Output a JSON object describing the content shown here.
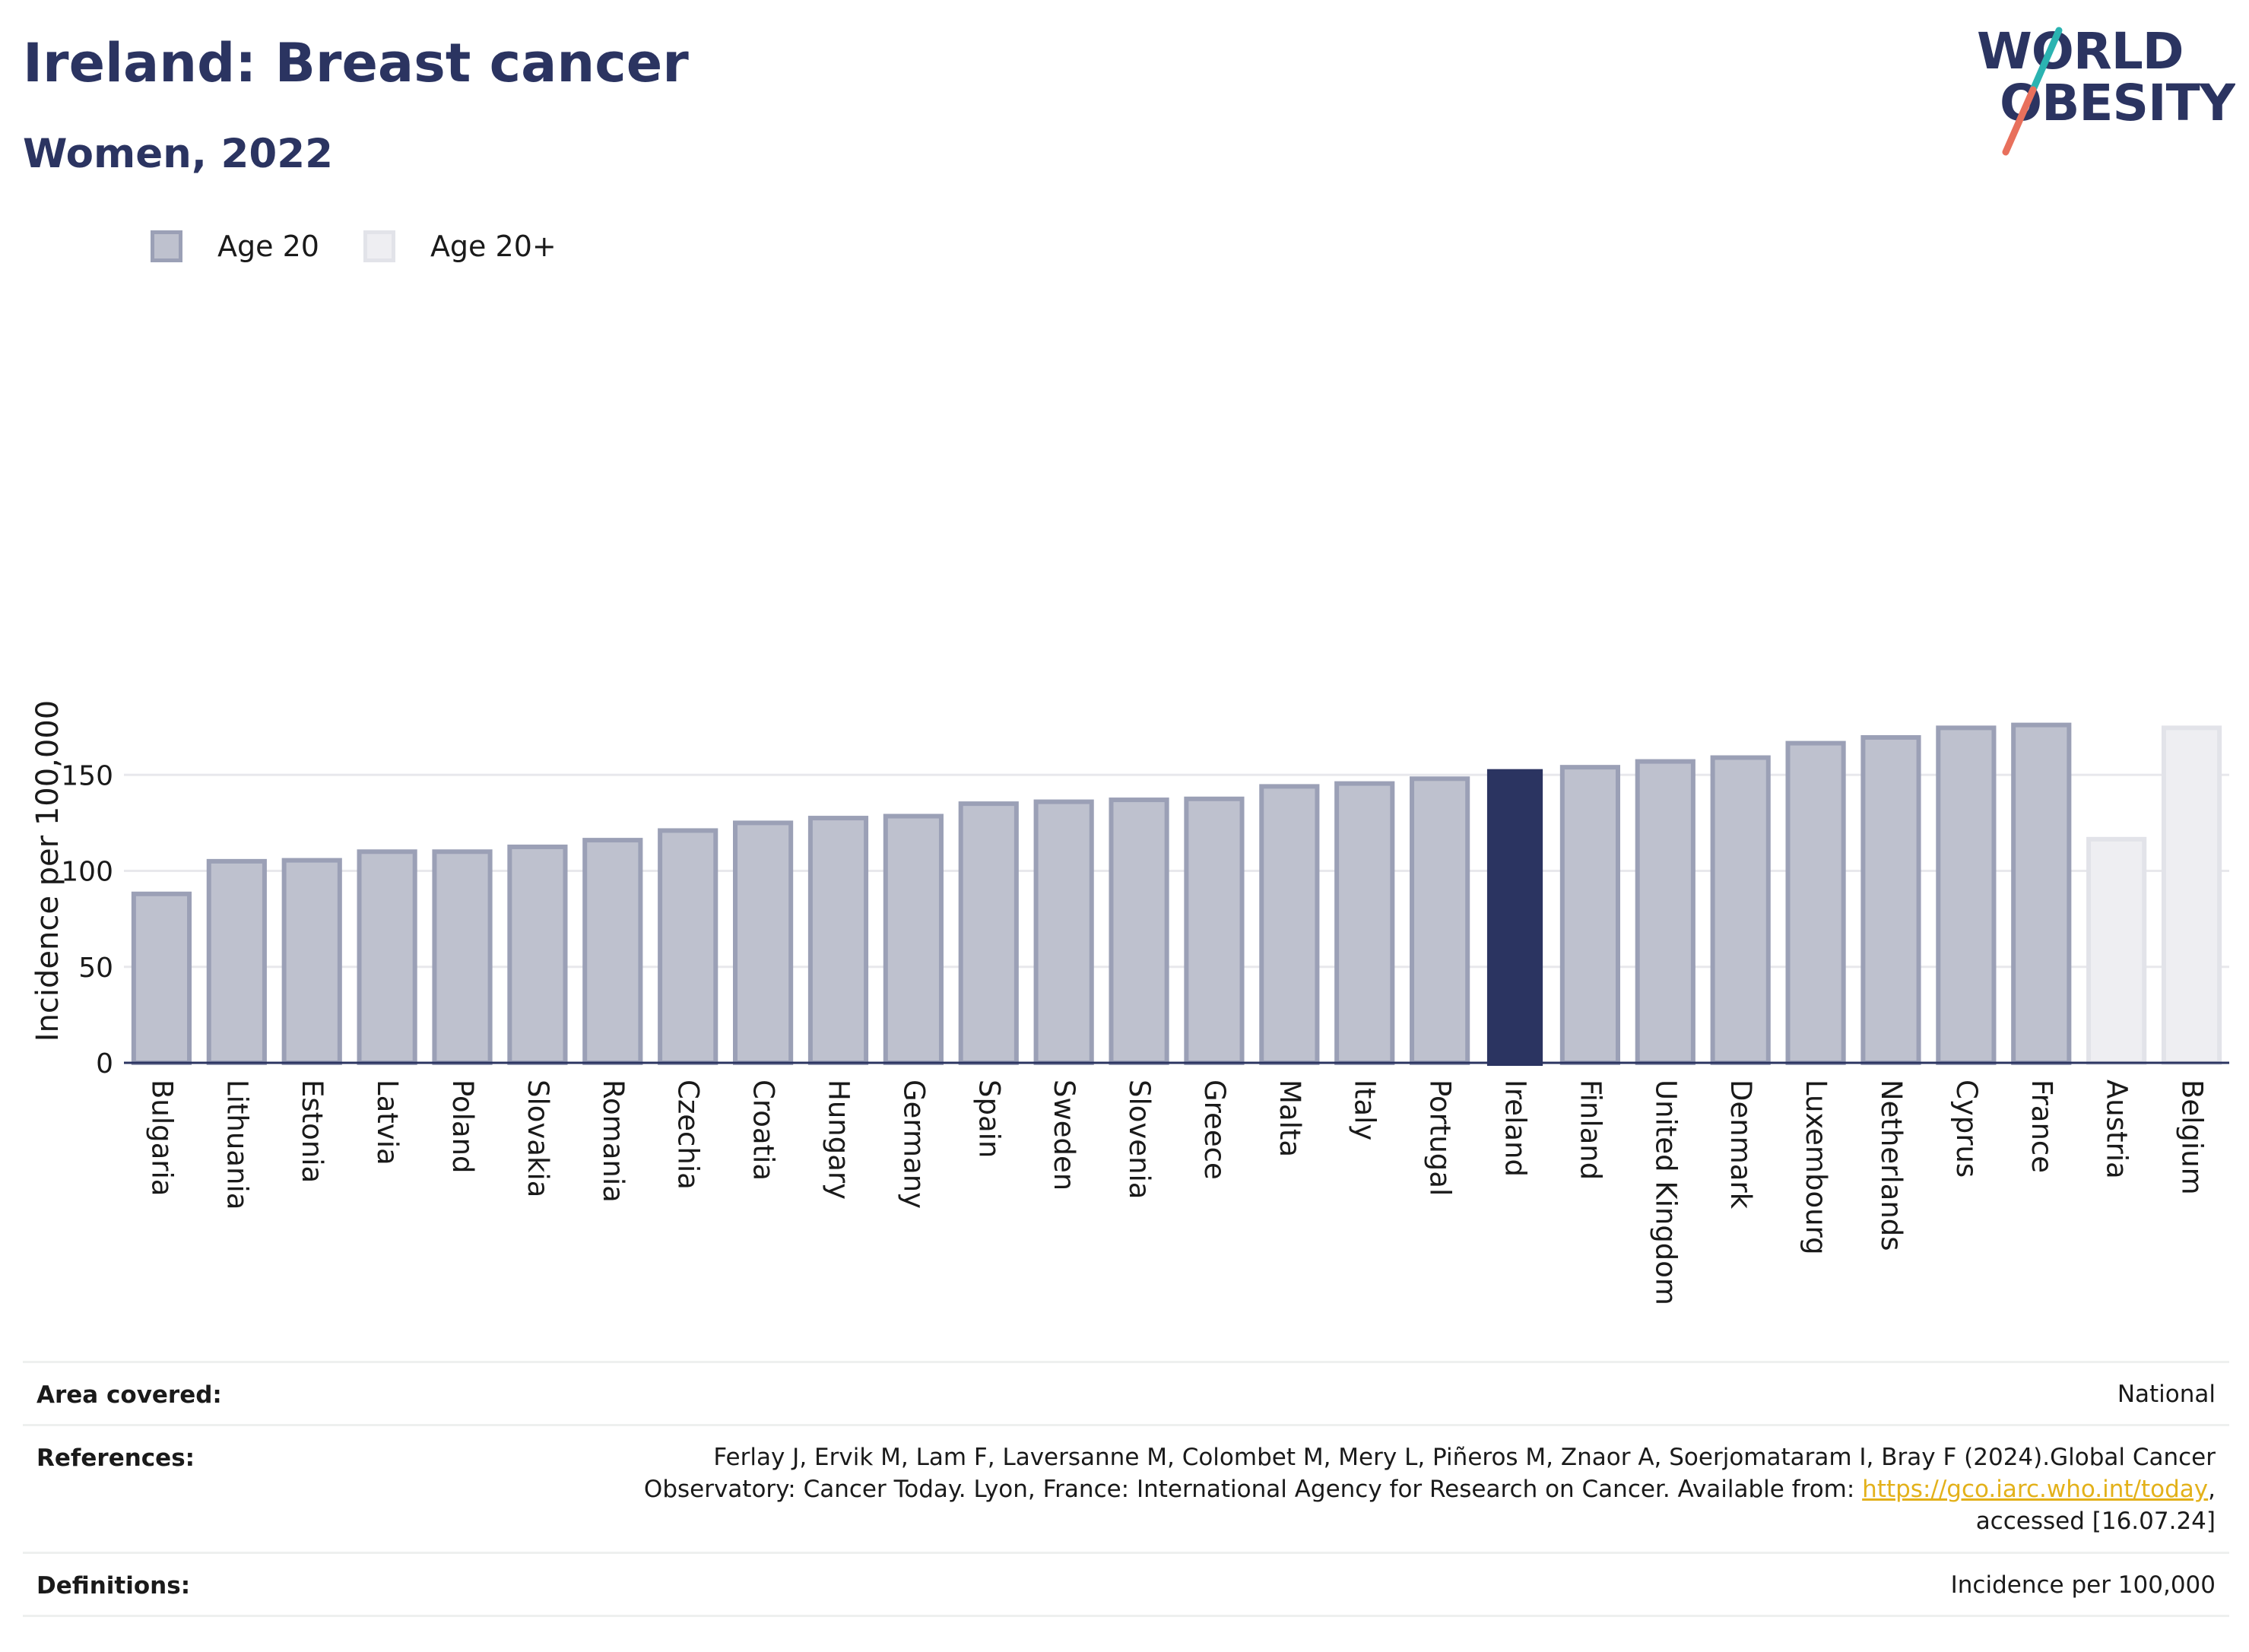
{
  "header": {
    "title": "Ireland: Breast cancer",
    "subtitle": "Women, 2022"
  },
  "logo": {
    "line1": "WORLD",
    "line2": "OBESITY",
    "colors": {
      "text": "#2b3461",
      "slash_top": "#2bb3b1",
      "slash_bottom": "#e8705c"
    }
  },
  "legend": [
    {
      "label": "Age 20",
      "fill": "#bec1ce",
      "stroke": "#9ba0b6"
    },
    {
      "label": "Age 20+",
      "fill": "#eeeef2",
      "stroke": "#e2e3e9"
    }
  ],
  "chart_data": {
    "type": "bar",
    "ylabel": "Incidence per 100,000",
    "ylim": [
      0,
      200
    ],
    "yticks": [
      0,
      50,
      100,
      150
    ],
    "grid": true,
    "highlight": "Ireland",
    "categories": [
      "Bulgaria",
      "Lithuania",
      "Estonia",
      "Latvia",
      "Poland",
      "Slovakia",
      "Romania",
      "Czechia",
      "Croatia",
      "Hungary",
      "Germany",
      "Spain",
      "Sweden",
      "Slovenia",
      "Greece",
      "Malta",
      "Italy",
      "Portugal",
      "Ireland",
      "Finland",
      "United Kingdom",
      "Denmark",
      "Luxembourg",
      "Netherlands",
      "Cyprus",
      "France",
      "Austria",
      "Belgium"
    ],
    "values": [
      88,
      105,
      105.5,
      110,
      110,
      112.5,
      116,
      121,
      125,
      127.5,
      128.5,
      135,
      136,
      137,
      137.5,
      144,
      145.5,
      148,
      153,
      154,
      157,
      159,
      166.5,
      169.5,
      174.5,
      176,
      116.5,
      174.5
    ],
    "series_by_bar": [
      "Age 20",
      "Age 20",
      "Age 20",
      "Age 20",
      "Age 20",
      "Age 20",
      "Age 20",
      "Age 20",
      "Age 20",
      "Age 20",
      "Age 20",
      "Age 20",
      "Age 20",
      "Age 20",
      "Age 20",
      "Age 20",
      "Age 20",
      "Age 20",
      "Age 20",
      "Age 20",
      "Age 20",
      "Age 20",
      "Age 20",
      "Age 20",
      "Age 20",
      "Age 20",
      "Age 20+",
      "Age 20+"
    ],
    "colors": {
      "age20_fill": "#bec1ce",
      "age20_stroke": "#9ba0b6",
      "age20plus_fill": "#eeeef2",
      "age20plus_stroke": "#e2e3e9",
      "highlight": "#2b3461",
      "grid": "#e8e8ec",
      "axis": "#2b3461"
    }
  },
  "meta": {
    "area_label": "Area covered:",
    "area_value": "National",
    "references_label": "References:",
    "references_line1": "Ferlay J, Ervik M, Lam F, Laversanne M, Colombet M, Mery L, Piñeros M, Znaor A, Soerjomataram I, Bray F (2024).Global Cancer",
    "references_line2_pre": "Observatory: Cancer Today. Lyon, France: International Agency for Research on Cancer. Available from: ",
    "references_link": "https://gco.iarc.who.int/today",
    "references_line2_post": ",",
    "references_line3": "accessed [16.07.24]",
    "definitions_label": "Definitions:",
    "definitions_value": "Incidence per 100,000"
  }
}
